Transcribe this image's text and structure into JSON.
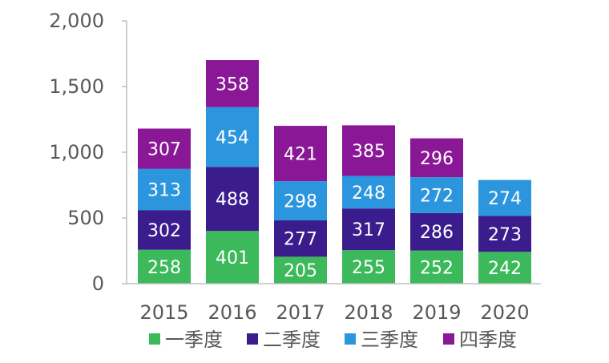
{
  "chart_data": {
    "type": "bar",
    "stacked": true,
    "categories": [
      "2015",
      "2016",
      "2017",
      "2018",
      "2019",
      "2020"
    ],
    "series": [
      {
        "name": "一季度",
        "color": "#3cb95a",
        "values": [
          258,
          401,
          205,
          255,
          252,
          242
        ]
      },
      {
        "name": "二季度",
        "color": "#3b1c8c",
        "values": [
          302,
          488,
          277,
          317,
          286,
          273
        ]
      },
      {
        "name": "三季度",
        "color": "#2b95de",
        "values": [
          313,
          454,
          298,
          248,
          272,
          274
        ]
      },
      {
        "name": "四季度",
        "color": "#8a1896",
        "values": [
          307,
          358,
          421,
          385,
          296,
          null
        ]
      }
    ],
    "ylim": [
      0,
      2000
    ],
    "yticks": [
      0,
      500,
      1000,
      1500,
      2000
    ],
    "ytick_labels": [
      "0",
      "500",
      "1,000",
      "1,500",
      "2,000"
    ],
    "grid": false,
    "legend_position": "bottom",
    "data_labels": true
  }
}
